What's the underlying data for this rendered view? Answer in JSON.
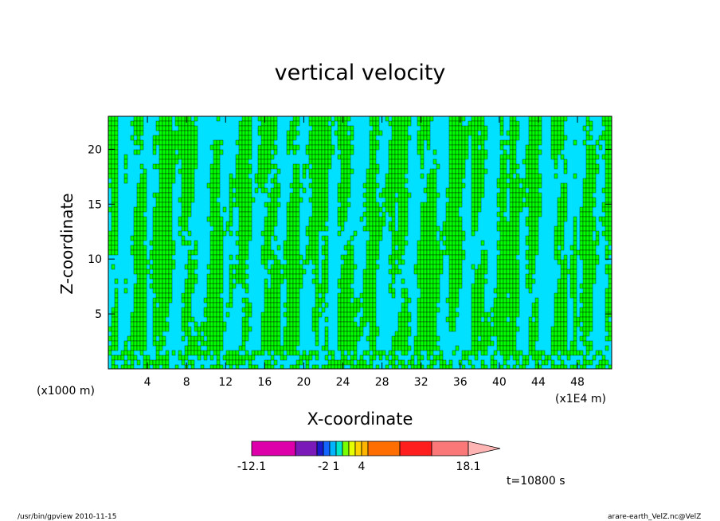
{
  "chart_data": {
    "type": "heatmap",
    "title": "vertical velocity",
    "xlabel": "X-coordinate",
    "ylabel": "Z-coordinate",
    "x_unit_left": "(x1000 m)",
    "x_unit_right": "(x1E4 m)",
    "xlim": [
      0,
      51.5
    ],
    "ylim": [
      0,
      23
    ],
    "x_ticks": [
      4,
      8,
      12,
      16,
      20,
      24,
      28,
      32,
      36,
      40,
      44,
      48
    ],
    "y_ticks": [
      5,
      10,
      15,
      20
    ],
    "time_label": "t=10800 s",
    "colorbar": {
      "colors": [
        "#dd00aa",
        "#7a1ab8",
        "#1a1acc",
        "#1464ff",
        "#00b4ff",
        "#00e6c8",
        "#78ff00",
        "#e6ff00",
        "#ffd200",
        "#ffb400",
        "#ff6e00",
        "#ff1e1e",
        "#fa7878",
        "#ffb4b4"
      ],
      "labels": [
        "-12.1",
        "-2",
        "1",
        "4",
        "18.1"
      ],
      "label_values": [
        -12.1,
        -2,
        1,
        4,
        18.1
      ]
    },
    "field_colors": {
      "negative": "#00e1ff",
      "positive": "#00ff00",
      "contour": "#000000"
    }
  },
  "footer": {
    "left": "/usr/bin/gpview   2010-11-15",
    "right": "arare-earth_VelZ.nc@VelZ"
  }
}
